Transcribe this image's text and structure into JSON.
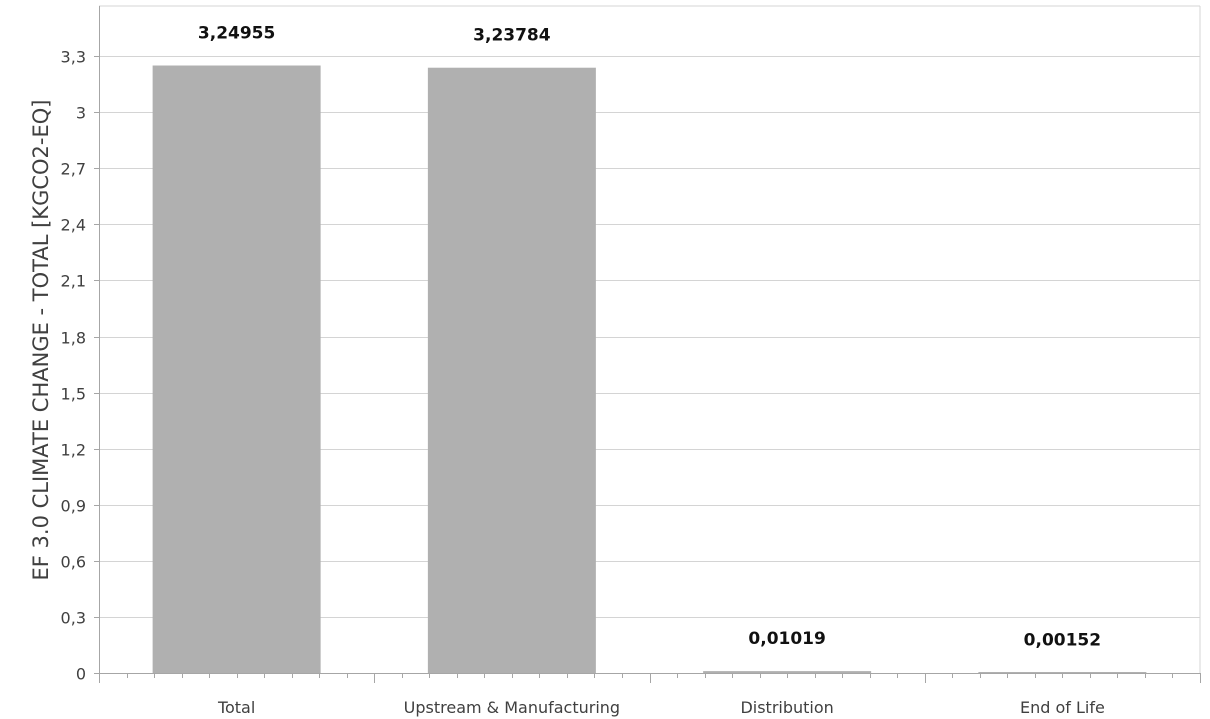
{
  "chart_data": {
    "type": "bar",
    "categories": [
      "Total",
      "Upstream & Manufacturing",
      "Distribution",
      "End of Life"
    ],
    "values": [
      3.24955,
      3.23784,
      0.01019,
      0.00152
    ],
    "data_labels": [
      "3,24955",
      "3,23784",
      "0,01019",
      "0,00152"
    ],
    "ylabel": "EF 3.0 CLIMATE CHANGE - TOTAL [KGCO2-EQ]",
    "ylim": [
      0,
      3.6
    ],
    "yticks": [
      0,
      0.3,
      0.6,
      0.9,
      1.2,
      1.5,
      1.8,
      2.1,
      2.4,
      2.7,
      3,
      3.3
    ],
    "ytick_labels": [
      "0",
      "0,3",
      "0,6",
      "0,9",
      "1,2",
      "1,5",
      "1,8",
      "2,1",
      "2,4",
      "2,7",
      "3",
      "3,3"
    ],
    "grid": true,
    "legend": "none",
    "colors": {
      "bar": "#b0b0b0",
      "grid": "#d4d4d4",
      "axis": "#a6a6a6"
    }
  }
}
